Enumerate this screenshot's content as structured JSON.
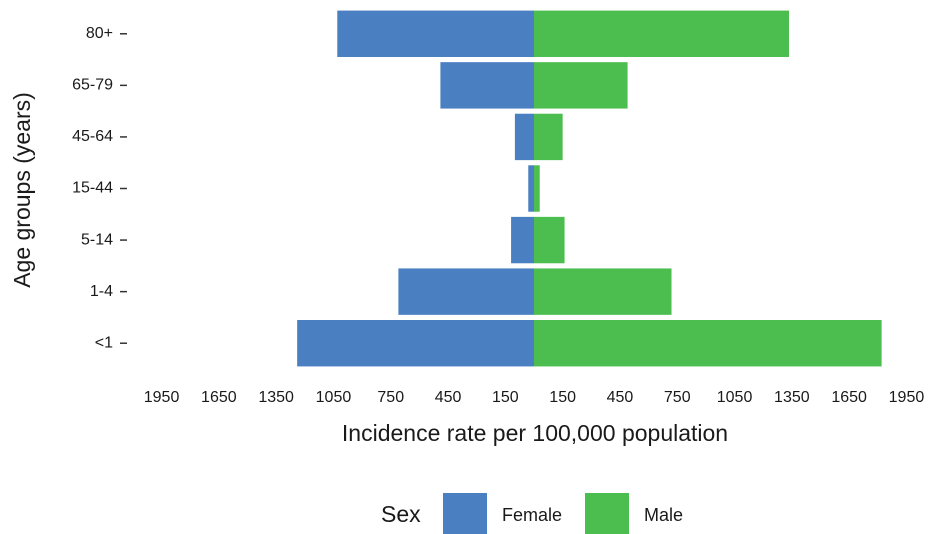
{
  "chart_data": {
    "type": "bar",
    "orientation": "horizontal",
    "stacked": "diverging",
    "x_label": "Incidence rate per 100,000 population",
    "y_label": "Age groups (years)",
    "legend_title": "Sex",
    "legend_position": "bottom",
    "categories": [
      "<1",
      "1-4",
      "5-14",
      "15-44",
      "45-64",
      "65-79",
      "80+"
    ],
    "series": [
      {
        "name": "Female",
        "color": "#4a7fc1",
        "values": [
          -1240,
          -710,
          -120,
          -30,
          -100,
          -490,
          -1030
        ]
      },
      {
        "name": "Male",
        "color": "#4cbe50",
        "values": [
          1820,
          720,
          160,
          30,
          150,
          490,
          1335
        ]
      }
    ],
    "xlim": [
      -2000,
      2000
    ],
    "xticks": [
      {
        "value": -1950,
        "label": "1950"
      },
      {
        "value": -1650,
        "label": "1650"
      },
      {
        "value": -1350,
        "label": "1350"
      },
      {
        "value": -1050,
        "label": "1050"
      },
      {
        "value": -750,
        "label": "750"
      },
      {
        "value": -450,
        "label": "450"
      },
      {
        "value": -150,
        "label": "150"
      },
      150,
      450,
      750,
      1050,
      1350,
      1650,
      1950
    ],
    "grid": false
  }
}
